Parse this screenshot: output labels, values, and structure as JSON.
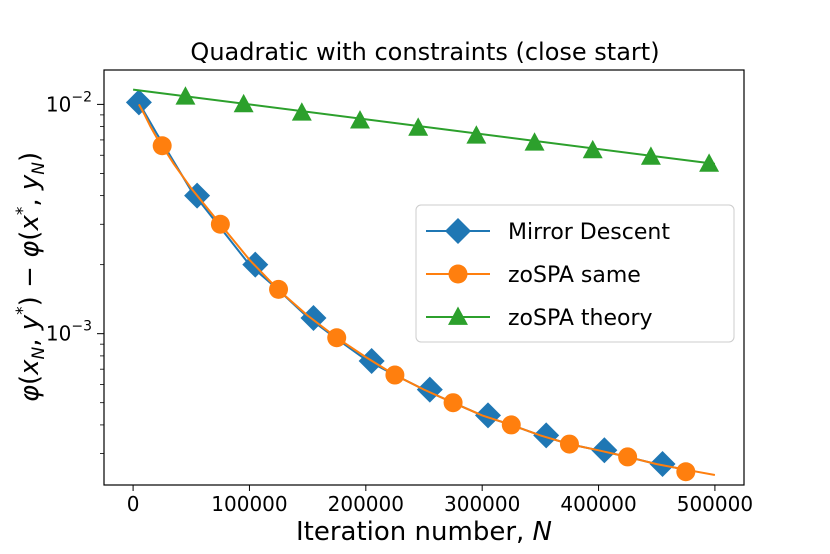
{
  "chart_data": {
    "type": "line",
    "title": "Quadratic with constraints (close start)",
    "xlabel": "Iteration number, N",
    "ylabel": "φ(x_N, y*) − φ(x*, y_N)",
    "xlim": [
      -25000,
      525000
    ],
    "ylim_log10": [
      -3.66,
      -1.85
    ],
    "yscale": "log",
    "x_ticks": [
      0,
      100000,
      200000,
      300000,
      400000,
      500000
    ],
    "x_tick_labels": [
      "0",
      "100000",
      "200000",
      "300000",
      "400000",
      "500000"
    ],
    "y_ticks": [
      0.001,
      0.01
    ],
    "y_tick_labels": [
      {
        "base": "10",
        "exp": "−3"
      },
      {
        "base": "10",
        "exp": "−2"
      }
    ],
    "legend_position": "center-right",
    "series": [
      {
        "name": "Mirror Descent",
        "color": "#1f77b4",
        "marker": "diamond",
        "line_x": [
          5000,
          10000,
          20000,
          30000,
          50000,
          75000,
          100000,
          125000,
          150000,
          175000,
          200000,
          225000,
          250000,
          275000,
          300000,
          325000,
          350000,
          375000,
          400000,
          425000,
          450000,
          475000
        ],
        "line_y": [
          0.0102,
          0.0092,
          0.0075,
          0.0062,
          0.0042,
          0.0029,
          0.002,
          0.00155,
          0.00118,
          0.00095,
          0.00077,
          0.00066,
          0.00057,
          0.0005,
          0.00044,
          0.0004,
          0.00036,
          0.00033,
          0.00031,
          0.00029,
          0.00027,
          0.000255
        ],
        "marker_x": [
          5000,
          55000,
          105000,
          155000,
          205000,
          255000,
          305000,
          355000,
          405000,
          455000
        ],
        "marker_y": [
          0.0102,
          0.004,
          0.002,
          0.00117,
          0.00076,
          0.00057,
          0.00044,
          0.00036,
          0.00031,
          0.00027
        ]
      },
      {
        "name": "zoSPA same",
        "color": "#ff7f0e",
        "marker": "circle",
        "line_x": [
          5000,
          10000,
          15000,
          20000,
          25000,
          35000,
          50000,
          75000,
          100000,
          125000,
          150000,
          175000,
          200000,
          225000,
          250000,
          275000,
          300000,
          325000,
          350000,
          375000,
          400000,
          425000,
          450000,
          475000,
          500000
        ],
        "line_y": [
          0.01,
          0.009,
          0.008,
          0.0072,
          0.0066,
          0.0055,
          0.0043,
          0.003,
          0.0021,
          0.00155,
          0.0012,
          0.00096,
          0.00079,
          0.00066,
          0.00057,
          0.0005,
          0.00044,
          0.0004,
          0.00036,
          0.00033,
          0.00031,
          0.00029,
          0.00027,
          0.000255,
          0.000242
        ],
        "marker_x": [
          25000,
          75000,
          125000,
          175000,
          225000,
          275000,
          325000,
          375000,
          425000,
          475000
        ],
        "marker_y": [
          0.0066,
          0.003,
          0.00156,
          0.00096,
          0.00066,
          0.0005,
          0.0004,
          0.00033,
          0.00029,
          0.00025
        ]
      },
      {
        "name": "zoSPA theory",
        "color": "#2ca02c",
        "marker": "triangle",
        "line_x": [
          0,
          500000
        ],
        "line_y": [
          0.0116,
          0.0055
        ],
        "marker_x": [
          45000,
          95000,
          145000,
          195000,
          245000,
          295000,
          345000,
          395000,
          445000,
          495000
        ],
        "marker_y": [
          0.0108,
          0.01,
          0.0092,
          0.0085,
          0.0079,
          0.0073,
          0.0068,
          0.0063,
          0.0059,
          0.0055
        ]
      }
    ]
  }
}
